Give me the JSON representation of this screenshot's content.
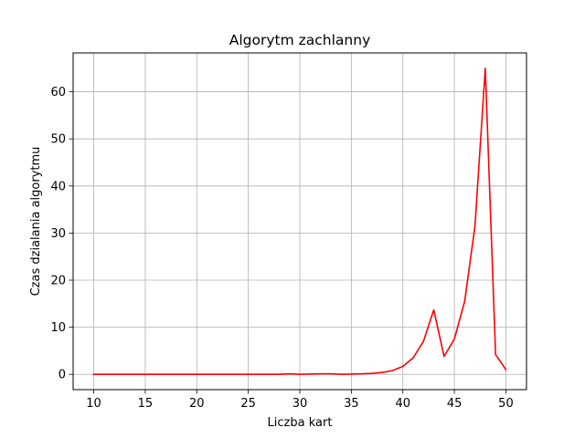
{
  "chart_data": {
    "type": "line",
    "title": "Algorytm zachlanny",
    "xlabel": "Liczba kart",
    "ylabel": "Czas dzialania algorytmu",
    "xlim": [
      8.0,
      52.0
    ],
    "ylim": [
      -3.25,
      68.25
    ],
    "xticks": [
      10,
      15,
      20,
      25,
      30,
      35,
      40,
      45,
      50
    ],
    "yticks": [
      0,
      10,
      20,
      30,
      40,
      50,
      60
    ],
    "grid": true,
    "line_color": "#ff0000",
    "series": [
      {
        "x": [
          10,
          11,
          12,
          13,
          14,
          15,
          16,
          17,
          18,
          19,
          20,
          21,
          22,
          23,
          24,
          25,
          26,
          27,
          28,
          29,
          30,
          31,
          32,
          33,
          34,
          35,
          36,
          37,
          38,
          39,
          40,
          41,
          42,
          43,
          44,
          45,
          46,
          47,
          48,
          49,
          50
        ],
        "values": [
          0,
          0,
          0,
          0,
          0,
          0,
          0,
          0,
          0,
          0,
          0,
          0,
          0,
          0,
          0,
          0,
          0,
          0,
          0,
          0.1,
          0,
          0.05,
          0.1,
          0.1,
          0,
          0.05,
          0.1,
          0.2,
          0.4,
          0.8,
          1.7,
          3.5,
          7.0,
          13.7,
          3.8,
          7.5,
          15.5,
          31.5,
          65.0,
          4.2,
          1.0
        ]
      }
    ]
  }
}
